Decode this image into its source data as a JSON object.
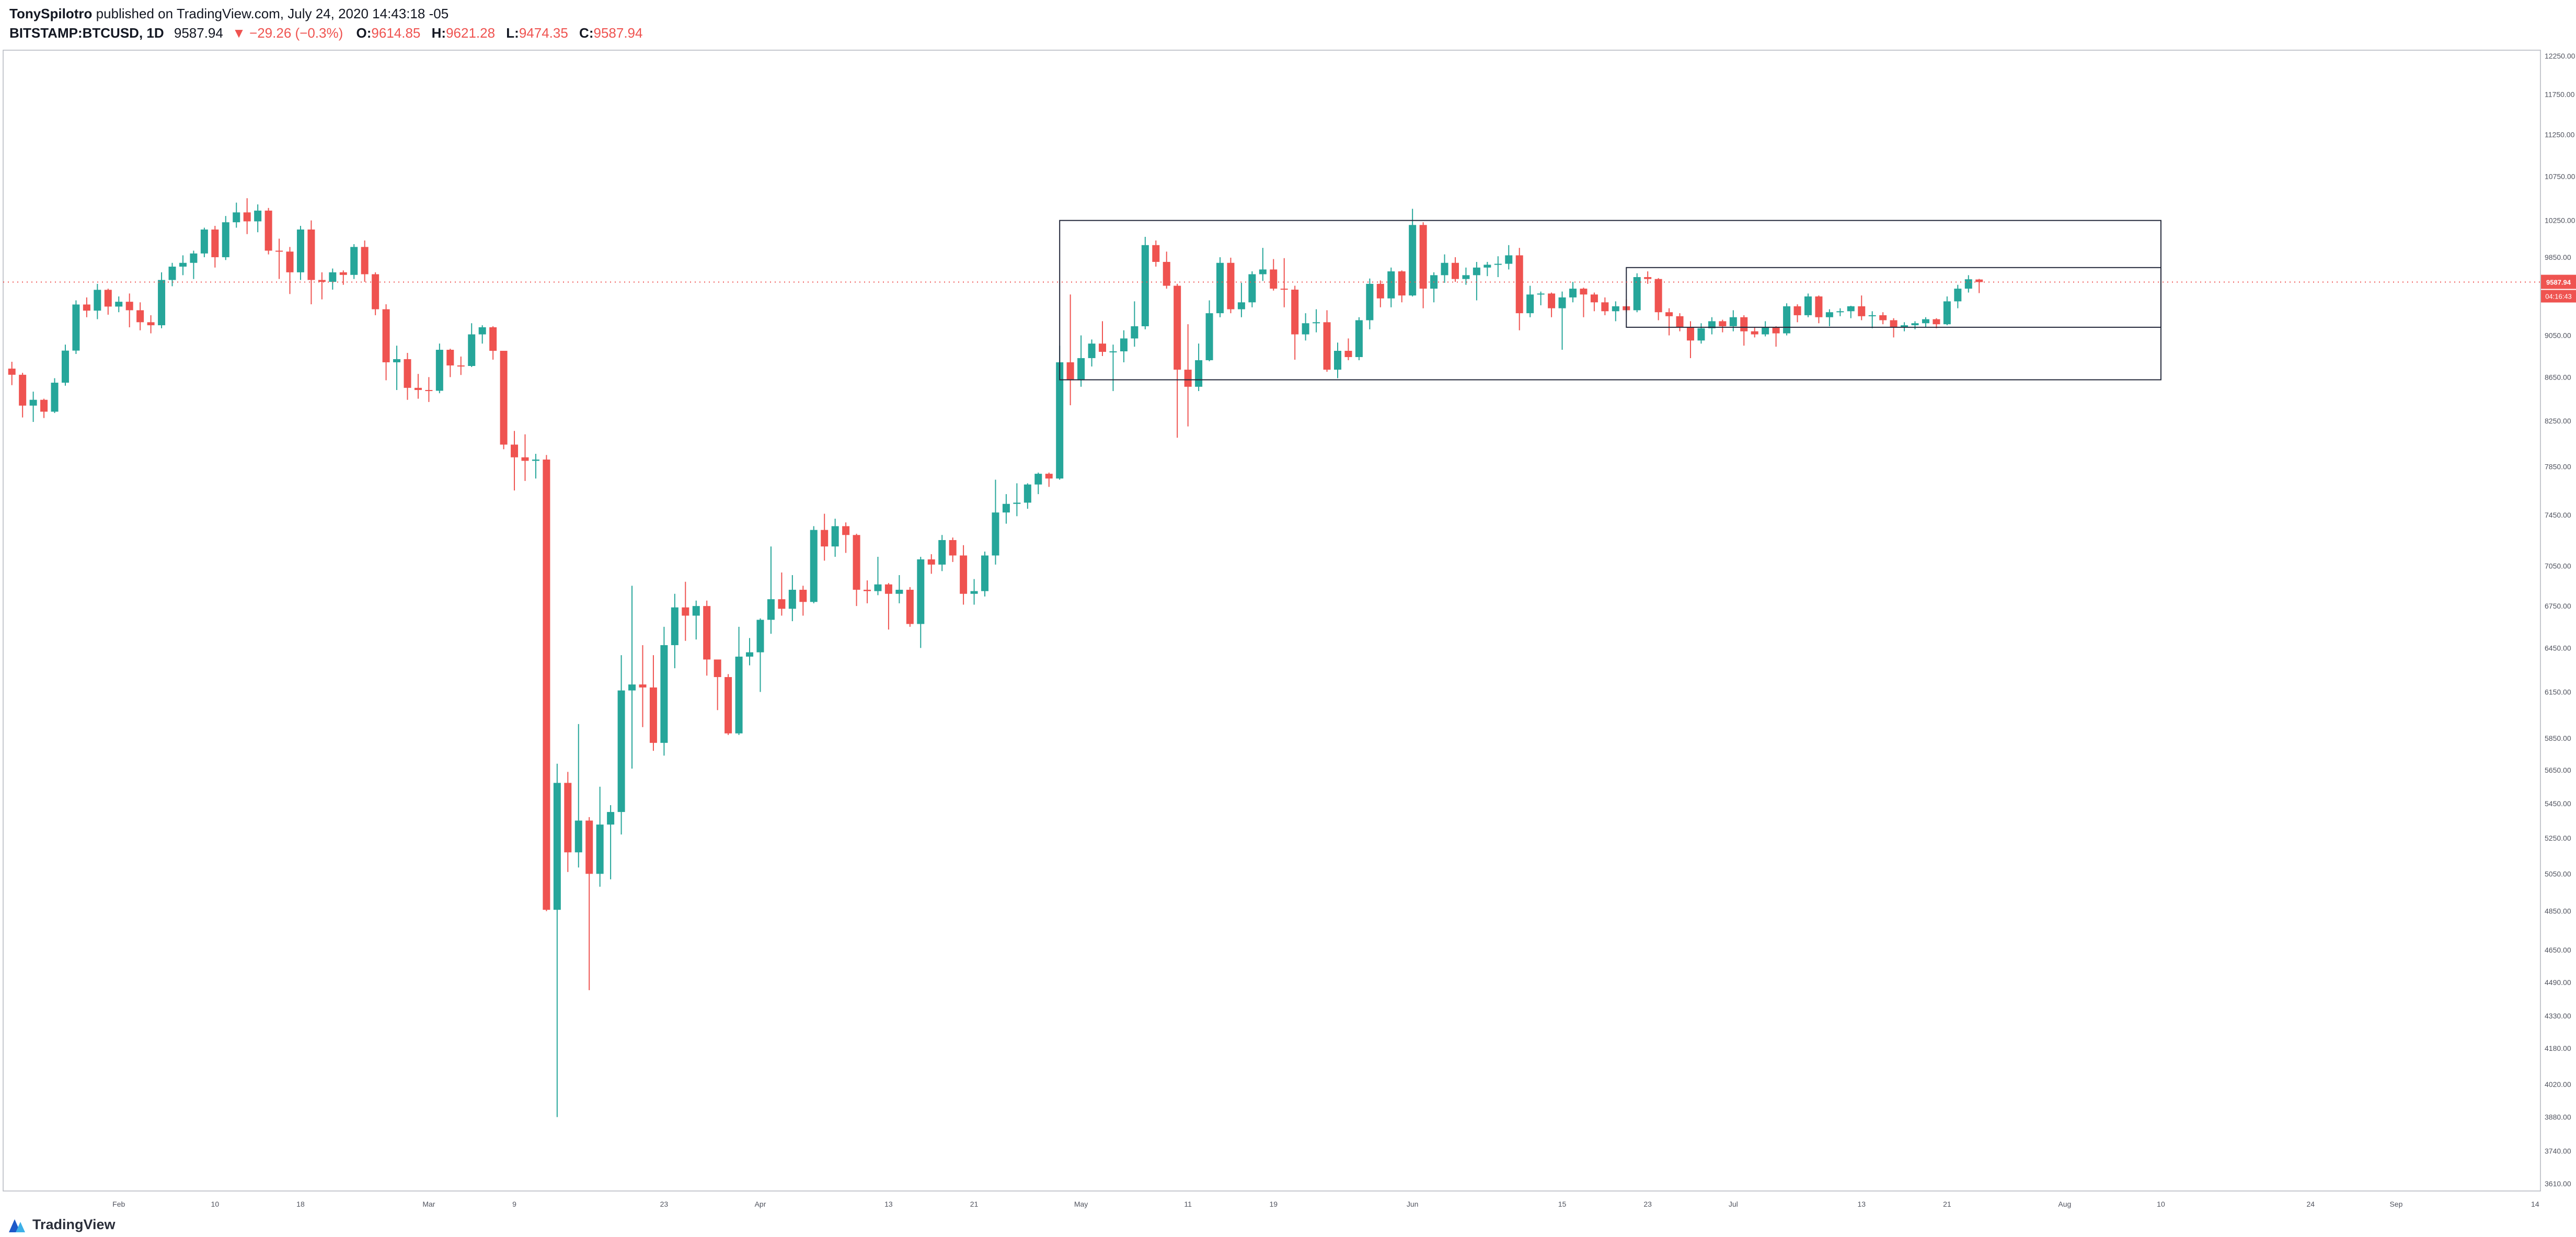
{
  "publish_bar": {
    "author": "TonySpilotro",
    "info": " published on TradingView.com, July 24, 2020 14:43:18 -05"
  },
  "legend": {
    "symbol": "BITSTAMP:BTCUSD, 1D",
    "price": "9587.94",
    "change": "▼ −29.26 (−0.3%)",
    "o_label": "O:",
    "o_value": "9614.85",
    "h_label": "H:",
    "h_value": "9621.28",
    "l_label": "L:",
    "l_value": "9474.35",
    "c_label": "C:",
    "c_value": "9587.94"
  },
  "footer": {
    "brand": "TradingView"
  },
  "colors": {
    "up": "#26a69a",
    "down": "#ef5350",
    "accent_red": "#ef5350",
    "label_bg": "#ef5350",
    "label_text": "#ffffff",
    "axis_text": "#50535e",
    "border": "#b2b5be",
    "drawing": "#23283a"
  },
  "chart_data": {
    "type": "candlestick",
    "symbol": "BITSTAMP:BTCUSD",
    "interval": "1D",
    "scale": "log",
    "start_date": "2020-01-22",
    "current_price": 9587.94,
    "countdown": "04:16:43",
    "price_axis": {
      "min": 3610,
      "max": 12250,
      "ticks": [
        12250,
        11750,
        11250,
        10750,
        10250,
        9850,
        9450,
        9050,
        8650,
        8250,
        7850,
        7450,
        7050,
        6750,
        6450,
        6150,
        5850,
        5650,
        5450,
        5250,
        5050,
        4850,
        4650,
        4490,
        4330,
        4180,
        4020,
        3880,
        3740,
        3610
      ]
    },
    "time_axis": {
      "ticks": [
        {
          "date": "2020-02-01",
          "label": "Feb"
        },
        {
          "date": "2020-02-10",
          "label": "10"
        },
        {
          "date": "2020-02-18",
          "label": "18"
        },
        {
          "date": "2020-03-01",
          "label": "Mar"
        },
        {
          "date": "2020-03-09",
          "label": "9"
        },
        {
          "date": "2020-03-23",
          "label": "23"
        },
        {
          "date": "2020-04-01",
          "label": "Apr"
        },
        {
          "date": "2020-04-13",
          "label": "13"
        },
        {
          "date": "2020-04-21",
          "label": "21"
        },
        {
          "date": "2020-05-01",
          "label": "May"
        },
        {
          "date": "2020-05-11",
          "label": "11"
        },
        {
          "date": "2020-05-19",
          "label": "19"
        },
        {
          "date": "2020-06-01",
          "label": "Jun"
        },
        {
          "date": "2020-06-15",
          "label": "15"
        },
        {
          "date": "2020-06-23",
          "label": "23"
        },
        {
          "date": "2020-07-01",
          "label": "Jul"
        },
        {
          "date": "2020-07-13",
          "label": "13"
        },
        {
          "date": "2020-07-21",
          "label": "21"
        },
        {
          "date": "2020-08-01",
          "label": "Aug"
        },
        {
          "date": "2020-08-10",
          "label": "10"
        },
        {
          "date": "2020-08-24",
          "label": "24"
        },
        {
          "date": "2020-09-01",
          "label": "Sep"
        },
        {
          "date": "2020-09-14",
          "label": "14"
        }
      ]
    },
    "drawings": [
      {
        "type": "rect",
        "from_date": "2020-04-29",
        "to_date": "2020-08-10",
        "price_top": 10250,
        "price_bottom": 8625
      },
      {
        "type": "rect",
        "from_date": "2020-06-21",
        "to_date": "2020-08-10",
        "price_top": 9740,
        "price_bottom": 9130
      }
    ],
    "ohlc": [
      [
        8730,
        8795,
        8575,
        8672
      ],
      [
        8672,
        8690,
        8280,
        8387
      ],
      [
        8387,
        8515,
        8240,
        8440
      ],
      [
        8440,
        8450,
        8275,
        8332
      ],
      [
        8332,
        8640,
        8320,
        8598
      ],
      [
        8598,
        8960,
        8570,
        8902
      ],
      [
        8902,
        9400,
        8870,
        9358
      ],
      [
        9358,
        9430,
        9230,
        9296
      ],
      [
        9296,
        9570,
        9210,
        9508
      ],
      [
        9508,
        9520,
        9255,
        9337
      ],
      [
        9337,
        9440,
        9280,
        9386
      ],
      [
        9386,
        9470,
        9130,
        9300
      ],
      [
        9300,
        9380,
        9100,
        9180
      ],
      [
        9180,
        9250,
        9070,
        9150
      ],
      [
        9150,
        9690,
        9120,
        9610
      ],
      [
        9610,
        9790,
        9545,
        9750
      ],
      [
        9750,
        9870,
        9660,
        9790
      ],
      [
        9790,
        9920,
        9620,
        9890
      ],
      [
        9890,
        10170,
        9850,
        10150
      ],
      [
        10150,
        10190,
        9740,
        9850
      ],
      [
        9850,
        10300,
        9820,
        10230
      ],
      [
        10230,
        10450,
        10170,
        10340
      ],
      [
        10340,
        10500,
        10100,
        10240
      ],
      [
        10240,
        10430,
        10120,
        10360
      ],
      [
        10360,
        10390,
        9880,
        9920
      ],
      [
        9920,
        10050,
        9620,
        9910
      ],
      [
        9910,
        9960,
        9465,
        9690
      ],
      [
        9690,
        10190,
        9610,
        10150
      ],
      [
        10150,
        10250,
        9360,
        9610
      ],
      [
        9610,
        9690,
        9410,
        9590
      ],
      [
        9590,
        9730,
        9510,
        9690
      ],
      [
        9690,
        9710,
        9560,
        9663
      ],
      [
        9663,
        9990,
        9620,
        9960
      ],
      [
        9960,
        10030,
        9590,
        9670
      ],
      [
        9670,
        9690,
        9250,
        9310
      ],
      [
        9310,
        9360,
        8620,
        8790
      ],
      [
        8790,
        8950,
        8530,
        8820
      ],
      [
        8820,
        8880,
        8440,
        8550
      ],
      [
        8550,
        8680,
        8450,
        8530
      ],
      [
        8530,
        8650,
        8420,
        8523
      ],
      [
        8523,
        8970,
        8500,
        8910
      ],
      [
        8910,
        8920,
        8650,
        8760
      ],
      [
        8760,
        8845,
        8670,
        8755
      ],
      [
        8755,
        9170,
        8745,
        9060
      ],
      [
        9060,
        9150,
        8970,
        9130
      ],
      [
        9130,
        9140,
        8815,
        8900
      ],
      [
        8900,
        8900,
        8000,
        8040
      ],
      [
        8040,
        8160,
        7650,
        7930
      ],
      [
        7930,
        8130,
        7730,
        7900
      ],
      [
        7900,
        7960,
        7750,
        7911
      ],
      [
        7911,
        7950,
        4850,
        4857
      ],
      [
        4857,
        5690,
        3880,
        5573
      ],
      [
        5573,
        5640,
        5060,
        5169
      ],
      [
        5169,
        5940,
        5085,
        5350
      ],
      [
        5350,
        5370,
        4452,
        5050
      ],
      [
        5050,
        5550,
        4980,
        5327
      ],
      [
        5327,
        5440,
        5020,
        5400
      ],
      [
        5400,
        6400,
        5270,
        6160
      ],
      [
        6160,
        6900,
        5660,
        6200
      ],
      [
        6200,
        6470,
        5920,
        6180
      ],
      [
        6180,
        6400,
        5770,
        5820
      ],
      [
        5820,
        6600,
        5740,
        6470
      ],
      [
        6470,
        6840,
        6310,
        6740
      ],
      [
        6740,
        6930,
        6500,
        6680
      ],
      [
        6680,
        6790,
        6510,
        6750
      ],
      [
        6750,
        6790,
        6260,
        6370
      ],
      [
        6370,
        6370,
        6030,
        6250
      ],
      [
        6250,
        6270,
        5870,
        5880
      ],
      [
        5880,
        6600,
        5870,
        6390
      ],
      [
        6390,
        6520,
        6330,
        6420
      ],
      [
        6420,
        6660,
        6150,
        6650
      ],
      [
        6650,
        7200,
        6550,
        6800
      ],
      [
        6800,
        7000,
        6680,
        6730
      ],
      [
        6730,
        6980,
        6640,
        6870
      ],
      [
        6870,
        6900,
        6680,
        6780
      ],
      [
        6780,
        7360,
        6770,
        7330
      ],
      [
        7330,
        7460,
        7090,
        7200
      ],
      [
        7200,
        7420,
        7120,
        7360
      ],
      [
        7360,
        7390,
        7150,
        7290
      ],
      [
        7290,
        7300,
        6750,
        6870
      ],
      [
        6870,
        6940,
        6770,
        6860
      ],
      [
        6860,
        7120,
        6830,
        6910
      ],
      [
        6910,
        6920,
        6580,
        6840
      ],
      [
        6840,
        6980,
        6770,
        6870
      ],
      [
        6870,
        6890,
        6600,
        6620
      ],
      [
        6620,
        7120,
        6450,
        7100
      ],
      [
        7100,
        7140,
        6990,
        7060
      ],
      [
        7060,
        7290,
        7010,
        7250
      ],
      [
        7250,
        7270,
        7080,
        7130
      ],
      [
        7130,
        7210,
        6760,
        6840
      ],
      [
        6840,
        6950,
        6760,
        6860
      ],
      [
        6860,
        7160,
        6820,
        7130
      ],
      [
        7130,
        7740,
        7060,
        7470
      ],
      [
        7470,
        7620,
        7380,
        7540
      ],
      [
        7540,
        7710,
        7440,
        7550
      ],
      [
        7550,
        7710,
        7500,
        7700
      ],
      [
        7700,
        7800,
        7620,
        7790
      ],
      [
        7790,
        7800,
        7680,
        7750
      ],
      [
        7750,
        8950,
        7740,
        8790
      ],
      [
        8790,
        9460,
        8390,
        8620
      ],
      [
        8620,
        9050,
        8560,
        8830
      ],
      [
        8830,
        9010,
        8750,
        8970
      ],
      [
        8970,
        9190,
        8850,
        8890
      ],
      [
        8890,
        8960,
        8520,
        8895
      ],
      [
        8895,
        9100,
        8790,
        9020
      ],
      [
        9020,
        9390,
        8940,
        9140
      ],
      [
        9140,
        10070,
        9110,
        9980
      ],
      [
        9980,
        10030,
        9750,
        9800
      ],
      [
        9800,
        9910,
        9520,
        9550
      ],
      [
        9550,
        9570,
        8100,
        8720
      ],
      [
        8720,
        9160,
        8200,
        8560
      ],
      [
        8560,
        8970,
        8520,
        8810
      ],
      [
        8810,
        9400,
        8800,
        9270
      ],
      [
        9270,
        9850,
        9230,
        9790
      ],
      [
        9790,
        9845,
        9270,
        9310
      ],
      [
        9310,
        9580,
        9230,
        9380
      ],
      [
        9380,
        9700,
        9330,
        9670
      ],
      [
        9670,
        9950,
        9600,
        9720
      ],
      [
        9720,
        9830,
        9500,
        9520
      ],
      [
        9520,
        9840,
        9330,
        9510
      ],
      [
        9510,
        9550,
        8815,
        9060
      ],
      [
        9060,
        9270,
        9000,
        9170
      ],
      [
        9170,
        9310,
        9080,
        9180
      ],
      [
        9180,
        9300,
        8700,
        8720
      ],
      [
        8720,
        8980,
        8640,
        8900
      ],
      [
        8900,
        9020,
        8810,
        8840
      ],
      [
        8840,
        9230,
        8810,
        9200
      ],
      [
        9200,
        9625,
        9110,
        9570
      ],
      [
        9570,
        9605,
        9330,
        9420
      ],
      [
        9420,
        9740,
        9330,
        9700
      ],
      [
        9700,
        9710,
        9380,
        9450
      ],
      [
        9450,
        10380,
        9440,
        10200
      ],
      [
        10200,
        10230,
        9320,
        9520
      ],
      [
        9520,
        9690,
        9380,
        9660
      ],
      [
        9660,
        9880,
        9580,
        9790
      ],
      [
        9790,
        9850,
        9590,
        9620
      ],
      [
        9620,
        9740,
        9560,
        9660
      ],
      [
        9660,
        9800,
        9400,
        9740
      ],
      [
        9740,
        9800,
        9650,
        9770
      ],
      [
        9770,
        9860,
        9640,
        9780
      ],
      [
        9780,
        9980,
        9720,
        9870
      ],
      [
        9870,
        9950,
        9100,
        9270
      ],
      [
        9270,
        9550,
        9230,
        9460
      ],
      [
        9460,
        9490,
        9350,
        9470
      ],
      [
        9470,
        9480,
        9230,
        9320
      ],
      [
        9320,
        9490,
        8910,
        9430
      ],
      [
        9430,
        9590,
        9380,
        9520
      ],
      [
        9520,
        9530,
        9230,
        9460
      ],
      [
        9460,
        9480,
        9290,
        9380
      ],
      [
        9380,
        9430,
        9250,
        9290
      ],
      [
        9290,
        9390,
        9190,
        9340
      ],
      [
        9340,
        9410,
        9280,
        9300
      ],
      [
        9300,
        9680,
        9280,
        9640
      ],
      [
        9640,
        9700,
        9570,
        9620
      ],
      [
        9620,
        9630,
        9200,
        9280
      ],
      [
        9280,
        9320,
        9050,
        9240
      ],
      [
        9240,
        9270,
        9090,
        9130
      ],
      [
        9130,
        9190,
        8830,
        9000
      ],
      [
        9000,
        9170,
        8970,
        9120
      ],
      [
        9120,
        9230,
        9060,
        9190
      ],
      [
        9190,
        9205,
        9080,
        9140
      ],
      [
        9140,
        9300,
        9090,
        9230
      ],
      [
        9230,
        9250,
        8950,
        9090
      ],
      [
        9090,
        9130,
        9030,
        9060
      ],
      [
        9060,
        9190,
        9040,
        9130
      ],
      [
        9130,
        9140,
        8940,
        9070
      ],
      [
        9070,
        9370,
        9050,
        9340
      ],
      [
        9340,
        9360,
        9180,
        9250
      ],
      [
        9250,
        9470,
        9230,
        9440
      ],
      [
        9440,
        9450,
        9170,
        9230
      ],
      [
        9230,
        9310,
        9140,
        9280
      ],
      [
        9280,
        9320,
        9240,
        9290
      ],
      [
        9290,
        9345,
        9220,
        9340
      ],
      [
        9340,
        9450,
        9200,
        9240
      ],
      [
        9240,
        9290,
        9120,
        9250
      ],
      [
        9250,
        9280,
        9160,
        9200
      ],
      [
        9200,
        9220,
        9030,
        9130
      ],
      [
        9130,
        9180,
        9090,
        9150
      ],
      [
        9150,
        9190,
        9110,
        9170
      ],
      [
        9170,
        9230,
        9130,
        9210
      ],
      [
        9210,
        9220,
        9120,
        9160
      ],
      [
        9160,
        9440,
        9150,
        9390
      ],
      [
        9390,
        9560,
        9320,
        9520
      ],
      [
        9520,
        9660,
        9480,
        9617.2
      ],
      [
        9614.85,
        9621.28,
        9474.35,
        9587.94
      ]
    ]
  }
}
